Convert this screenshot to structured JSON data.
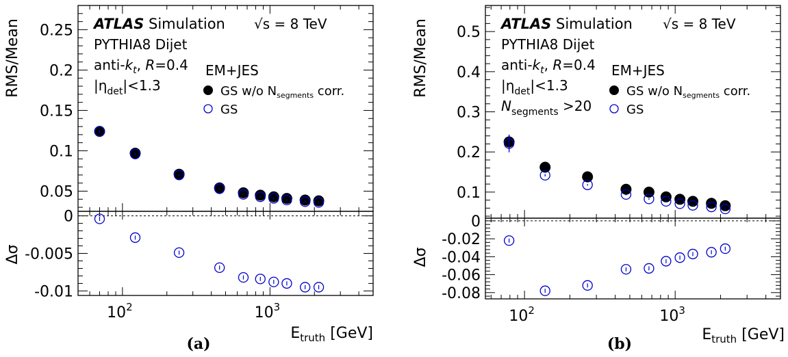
{
  "chart_data": [
    {
      "type": "scatter",
      "panel_label": "(a)",
      "xlabel_main": "E",
      "xlabel_sub": "truth",
      "xlabel_unit": "[GeV]",
      "xscale": "log",
      "xlim": [
        50,
        5000
      ],
      "x_tick_labels": [
        {
          "x": 100,
          "base": "10",
          "exp": "2"
        },
        {
          "x": 1000,
          "base": "10",
          "exp": "3"
        }
      ],
      "top": {
        "ylabel": "RMS/Mean",
        "ylim": [
          0.025,
          0.28
        ],
        "yticks": [
          0.05,
          0.1,
          0.15,
          0.2,
          0.25
        ],
        "ytick_labels": [
          "0.05",
          "0.1",
          "0.15",
          "0.2",
          "0.25"
        ],
        "series": [
          {
            "name_main": "GS w/o N",
            "name_sub": "segments",
            "name_suffix": " corr.",
            "marker": "filled-circle",
            "color": "#000000",
            "x": [
              70,
              122,
              242,
              455,
              660,
              860,
              1060,
              1300,
              1730,
              2140
            ],
            "y": [
              0.124,
              0.097,
              0.071,
              0.054,
              0.048,
              0.045,
              0.043,
              0.041,
              0.039,
              0.038
            ],
            "yerr": [
              0.002,
              0.001,
              0.001,
              0.001,
              0.001,
              0.001,
              0.001,
              0.001,
              0.001,
              0.001
            ]
          },
          {
            "name": "GS",
            "marker": "open-circle",
            "color": "#0000cc",
            "x": [
              70,
              122,
              242,
              455,
              660,
              860,
              1060,
              1300,
              1730,
              2140
            ],
            "y": [
              0.124,
              0.096,
              0.07,
              0.053,
              0.046,
              0.043,
              0.041,
              0.039,
              0.037,
              0.036
            ],
            "yerr": [
              0.002,
              0.001,
              0.001,
              0.001,
              0.001,
              0.001,
              0.001,
              0.001,
              0.001,
              0.001
            ]
          }
        ]
      },
      "bottom": {
        "ylabel": "Δσ",
        "ylim": [
          -0.0106,
          0.0006
        ],
        "yticks": [
          0,
          -0.005,
          -0.01
        ],
        "ytick_labels": [
          "0",
          "-0.005",
          "-0.01"
        ],
        "reference_line": 0,
        "series": [
          {
            "name": "GS",
            "marker": "open-circle",
            "color": "#0000cc",
            "x": [
              70,
              122,
              242,
              455,
              660,
              860,
              1060,
              1300,
              1730,
              2140
            ],
            "y": [
              -0.0004,
              -0.0029,
              -0.0049,
              -0.0069,
              -0.0082,
              -0.0084,
              -0.0088,
              -0.009,
              -0.0095,
              -0.0095
            ]
          }
        ]
      },
      "legend_title": "EM+JES",
      "annotations": {
        "atlas": "ATLAS",
        "atlas_suffix": " Simulation",
        "energy": "√s = 8 TeV",
        "generator": "PYTHIA8 Dijet",
        "algo_prefix": "anti-",
        "algo_k": "k",
        "algo_t": "t",
        "algo_mid": ", ",
        "algo_R": "R",
        "algo_suffix": "=0.4",
        "eta_prefix": "|η",
        "eta_sub": "det",
        "eta_suffix": "|<1.3",
        "nseg_main": "",
        "nseg_sub": "",
        "nseg_suffix": ""
      }
    },
    {
      "type": "scatter",
      "panel_label": "(b)",
      "xlabel_main": "E",
      "xlabel_sub": "truth",
      "xlabel_unit": "[GeV]",
      "xscale": "log",
      "xlim": [
        55,
        5000
      ],
      "x_tick_labels": [
        {
          "x": 100,
          "base": "10",
          "exp": "2"
        },
        {
          "x": 1000,
          "base": "10",
          "exp": "3"
        }
      ],
      "top": {
        "ylabel": "RMS/Mean",
        "ylim": [
          0.035,
          0.565
        ],
        "yticks": [
          0.1,
          0.2,
          0.3,
          0.4,
          0.5
        ],
        "ytick_labels": [
          "0.1",
          "0.2",
          "0.3",
          "0.4",
          "0.5"
        ],
        "series": [
          {
            "name_main": "GS w/o N",
            "name_sub": "segments",
            "name_suffix": " corr.",
            "marker": "filled-circle",
            "color": "#000000",
            "x": [
              79,
              137,
              262,
              472,
              670,
              870,
              1075,
              1310,
              1740,
              2150
            ],
            "y": [
              0.225,
              0.162,
              0.138,
              0.107,
              0.1,
              0.088,
              0.082,
              0.077,
              0.072,
              0.066
            ],
            "yerr": [
              0.018,
              0.003,
              0.002,
              0.002,
              0.002,
              0.002,
              0.002,
              0.002,
              0.002,
              0.002
            ]
          },
          {
            "name": "GS",
            "marker": "open-circle",
            "color": "#0000cc",
            "x": [
              79,
              137,
              262,
              472,
              670,
              870,
              1075,
              1310,
              1740,
              2150
            ],
            "y": [
              0.221,
              0.142,
              0.118,
              0.094,
              0.083,
              0.077,
              0.071,
              0.067,
              0.063,
              0.058
            ],
            "yerr": [
              0.022,
              0.003,
              0.002,
              0.002,
              0.002,
              0.002,
              0.002,
              0.002,
              0.002,
              0.002
            ]
          }
        ]
      },
      "bottom": {
        "ylabel": "Δσ",
        "ylim": [
          -0.087,
          0.003
        ],
        "yticks": [
          0,
          -0.02,
          -0.04,
          -0.06,
          -0.08
        ],
        "ytick_labels": [
          "0",
          "-0.02",
          "-0.04",
          "-0.06",
          "-0.08"
        ],
        "reference_line": 0,
        "series": [
          {
            "name": "GS",
            "marker": "open-circle",
            "color": "#0000cc",
            "x": [
              79,
              137,
              262,
              472,
              670,
              870,
              1075,
              1310,
              1740,
              2150
            ],
            "y": [
              -0.022,
              -0.078,
              -0.072,
              -0.054,
              -0.053,
              -0.045,
              -0.041,
              -0.037,
              -0.035,
              -0.031
            ]
          }
        ]
      },
      "legend_title": "EM+JES",
      "annotations": {
        "atlas": "ATLAS",
        "atlas_suffix": " Simulation",
        "energy": "√s = 8 TeV",
        "generator": "PYTHIA8 Dijet",
        "algo_prefix": "anti-",
        "algo_k": "k",
        "algo_t": "t",
        "algo_mid": ", ",
        "algo_R": "R",
        "algo_suffix": "=0.4",
        "eta_prefix": "|η",
        "eta_sub": "det",
        "eta_suffix": "|<1.3",
        "nseg_main": "N",
        "nseg_sub": "segments",
        "nseg_suffix": " >20"
      }
    }
  ]
}
